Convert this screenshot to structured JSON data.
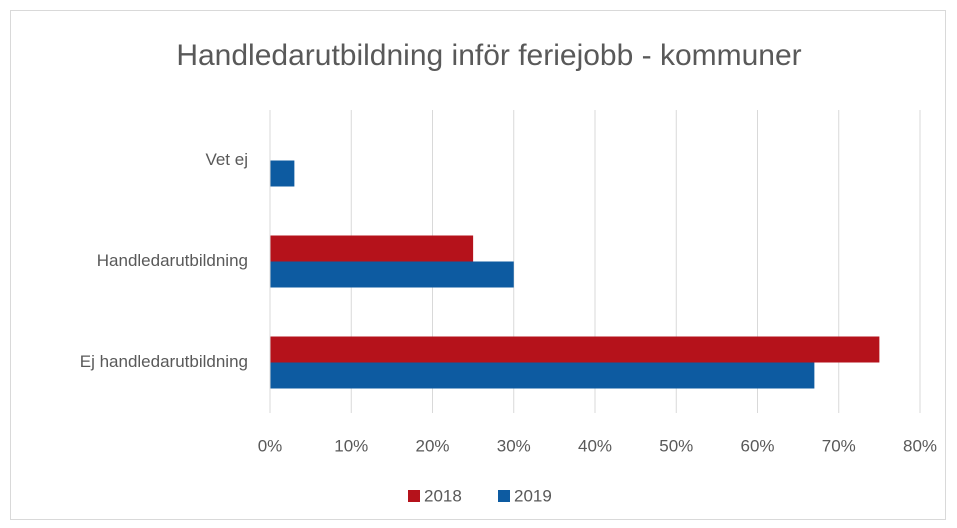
{
  "chart_data": {
    "type": "hbar",
    "title": "Handledarutbildning inför feriejobb - kommuner",
    "categories": [
      "Vet ej",
      "Handledarutbildning",
      "Ej handledarutbildning"
    ],
    "series": [
      {
        "name": "2018",
        "color": "#b5121b",
        "values": [
          null,
          25,
          75
        ]
      },
      {
        "name": "2019",
        "color": "#0d5ba1",
        "values": [
          3,
          30,
          67
        ]
      }
    ],
    "xlim": [
      0,
      80
    ],
    "xticks": [
      {
        "value": 0,
        "label": "0%"
      },
      {
        "value": 10,
        "label": "10%"
      },
      {
        "value": 20,
        "label": "20%"
      },
      {
        "value": 30,
        "label": "30%"
      },
      {
        "value": 40,
        "label": "40%"
      },
      {
        "value": 50,
        "label": "50%"
      },
      {
        "value": 60,
        "label": "60%"
      },
      {
        "value": 70,
        "label": "70%"
      },
      {
        "value": 80,
        "label": "80%"
      }
    ],
    "grid": true,
    "legend": "bottom"
  }
}
